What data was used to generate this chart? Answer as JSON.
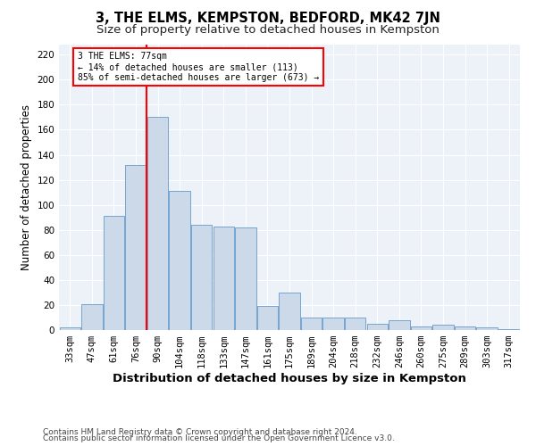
{
  "title": "3, THE ELMS, KEMPSTON, BEDFORD, MK42 7JN",
  "subtitle": "Size of property relative to detached houses in Kempston",
  "xlabel": "Distribution of detached houses by size in Kempston",
  "ylabel": "Number of detached properties",
  "bar_color": "#ccd9e8",
  "bar_edge_color": "#6699cc",
  "categories": [
    "33sqm",
    "47sqm",
    "61sqm",
    "76sqm",
    "90sqm",
    "104sqm",
    "118sqm",
    "133sqm",
    "147sqm",
    "161sqm",
    "175sqm",
    "189sqm",
    "204sqm",
    "218sqm",
    "232sqm",
    "246sqm",
    "260sqm",
    "275sqm",
    "289sqm",
    "303sqm",
    "317sqm"
  ],
  "values": [
    2,
    21,
    91,
    132,
    170,
    111,
    84,
    83,
    82,
    19,
    30,
    10,
    10,
    10,
    5,
    8,
    3,
    4,
    3,
    2,
    1
  ],
  "ylim": [
    0,
    228
  ],
  "yticks": [
    0,
    20,
    40,
    60,
    80,
    100,
    120,
    140,
    160,
    180,
    200,
    220
  ],
  "red_line_x": 3.5,
  "annotation_text": "3 THE ELMS: 77sqm\n← 14% of detached houses are smaller (113)\n85% of semi-detached houses are larger (673) →",
  "footer_line1": "Contains HM Land Registry data © Crown copyright and database right 2024.",
  "footer_line2": "Contains public sector information licensed under the Open Government Licence v3.0.",
  "background_color": "#edf2f9",
  "grid_color": "#ffffff",
  "title_fontsize": 10.5,
  "subtitle_fontsize": 9.5,
  "axis_label_fontsize": 8.5,
  "tick_fontsize": 7.5,
  "footer_fontsize": 6.5
}
